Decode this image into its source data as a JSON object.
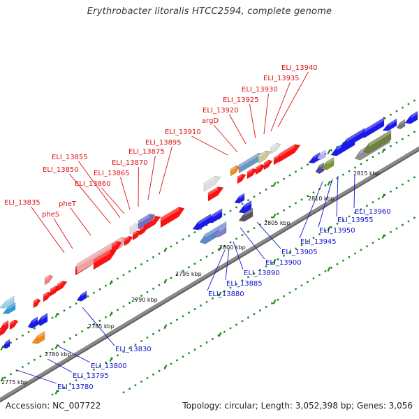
{
  "title": "Erythrobacter litoralis HTCC2594, complete genome",
  "accession_label": "Accession: NC_007722",
  "summary_label": "Topology: circular; Length: 3,052,398 bp; Genes: 3,056",
  "colors": {
    "backbone": "#8a8a8a",
    "forward_label": "#dd1111",
    "reverse_label": "#1111cc",
    "tick": "#1c8c1c",
    "forward_gene": "#ff1111",
    "reverse_gene": "#1a1aee"
  },
  "scale_labels": [
    "2775 kbp",
    "2780 kbp",
    "2785 kbp",
    "2790 kbp",
    "2795 kbp",
    "2800 kbp",
    "2805 kbp",
    "2810 kbp",
    "2815 kbp"
  ],
  "forward_labels": [
    "ELI_13835",
    "pheS",
    "pheT",
    "ELI_13850",
    "ELI_13855",
    "ELI_13860",
    "ELI_13865",
    "ELI_13870",
    "ELI_13875",
    "ELI_13895",
    "ELI_13910",
    "argD",
    "ELI_13920",
    "ELI_13925",
    "ELI_13930",
    "ELI_13935",
    "ELI_13940"
  ],
  "reverse_labels": [
    "ELI_13780",
    "ELI_13795",
    "ELI_13800",
    "ELI_13830",
    "ELI_13880",
    "ELI_13885",
    "ELI_13890",
    "ELI_13900",
    "ELI_13905",
    "ELI_13945",
    "ELI_13950",
    "ELI_13955",
    "ELI_13960"
  ]
}
